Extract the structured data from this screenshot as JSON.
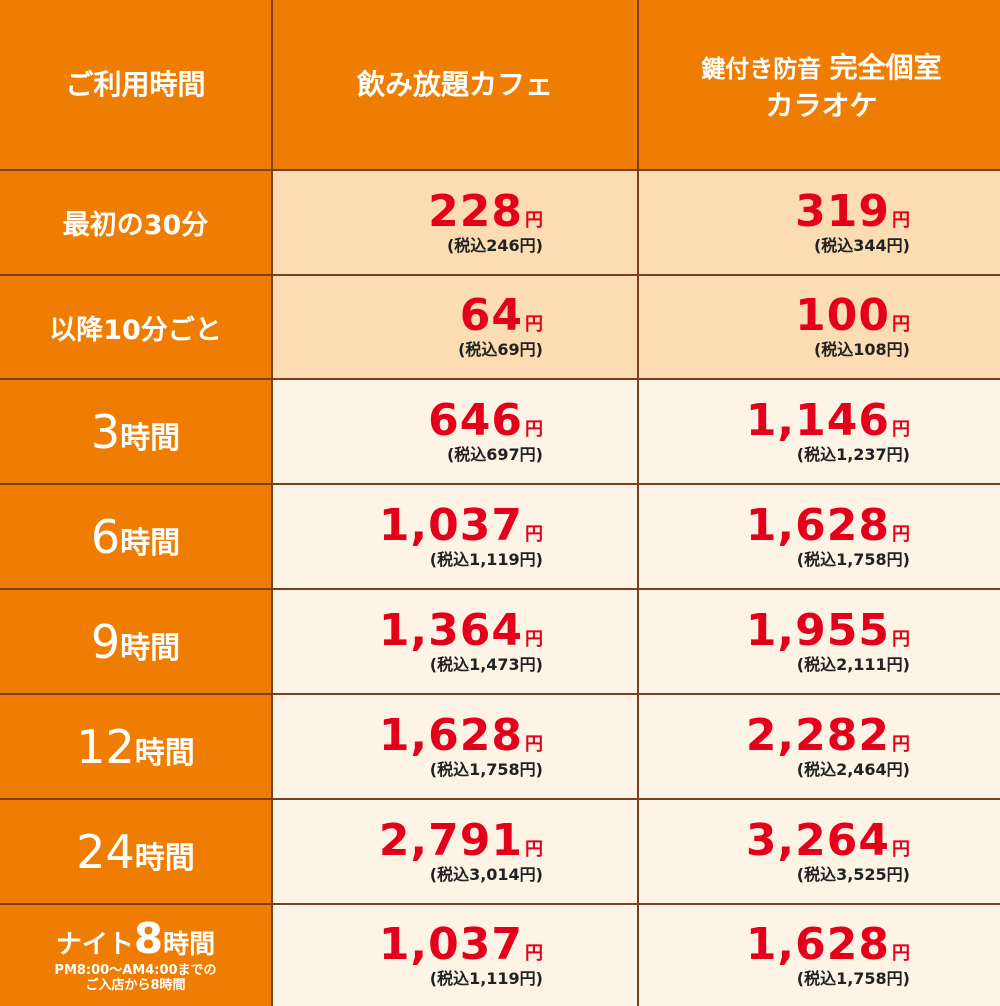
{
  "header": {
    "col1": "ご利用時間",
    "col2": "飲み放題カフェ",
    "col3_line1_prefix": "鍵付き防音",
    "col3_line1_main": "完全個室",
    "col3_line2": "カラオケ"
  },
  "rows": [
    {
      "label": "最初の30分",
      "cafe": {
        "price": "228",
        "unit": "円",
        "tax": "(税込246円)"
      },
      "karaoke": {
        "price": "319",
        "unit": "円",
        "tax": "(税込344円)"
      }
    },
    {
      "label": "以降10分ごと",
      "cafe": {
        "price": "64",
        "unit": "円",
        "tax": "(税込69円)"
      },
      "karaoke": {
        "price": "100",
        "unit": "円",
        "tax": "(税込108円)"
      }
    },
    {
      "label_num": "3",
      "label_unit": "時間",
      "cafe": {
        "price": "646",
        "unit": "円",
        "tax": "(税込697円)"
      },
      "karaoke": {
        "price": "1,146",
        "unit": "円",
        "tax": "(税込1,237円)"
      }
    },
    {
      "label_num": "6",
      "label_unit": "時間",
      "cafe": {
        "price": "1,037",
        "unit": "円",
        "tax": "(税込1,119円)"
      },
      "karaoke": {
        "price": "1,628",
        "unit": "円",
        "tax": "(税込1,758円)"
      }
    },
    {
      "label_num": "9",
      "label_unit": "時間",
      "cafe": {
        "price": "1,364",
        "unit": "円",
        "tax": "(税込1,473円)"
      },
      "karaoke": {
        "price": "1,955",
        "unit": "円",
        "tax": "(税込2,111円)"
      }
    },
    {
      "label_num": "12",
      "label_unit": "時間",
      "cafe": {
        "price": "1,628",
        "unit": "円",
        "tax": "(税込1,758円)"
      },
      "karaoke": {
        "price": "2,282",
        "unit": "円",
        "tax": "(税込2,464円)"
      }
    },
    {
      "label_num": "24",
      "label_unit": "時間",
      "cafe": {
        "price": "2,791",
        "unit": "円",
        "tax": "(税込3,014円)"
      },
      "karaoke": {
        "price": "3,264",
        "unit": "円",
        "tax": "(税込3,525円)"
      }
    },
    {
      "label_prefix": "ナイト",
      "label_num": "8",
      "label_unit": "時間",
      "label_sub1": "PM8:00～AM4:00までの",
      "label_sub2": "ご入店から8時間",
      "cafe": {
        "price": "1,037",
        "unit": "円",
        "tax": "(税込1,119円)"
      },
      "karaoke": {
        "price": "1,628",
        "unit": "円",
        "tax": "(税込1,758円)"
      }
    }
  ],
  "colors": {
    "header_orange": "#ee7d02",
    "price_red": "#e4001a",
    "row_light": "#fcdcb3",
    "row_pale": "#fdf4e6",
    "border_brown": "#7a3f1e"
  }
}
